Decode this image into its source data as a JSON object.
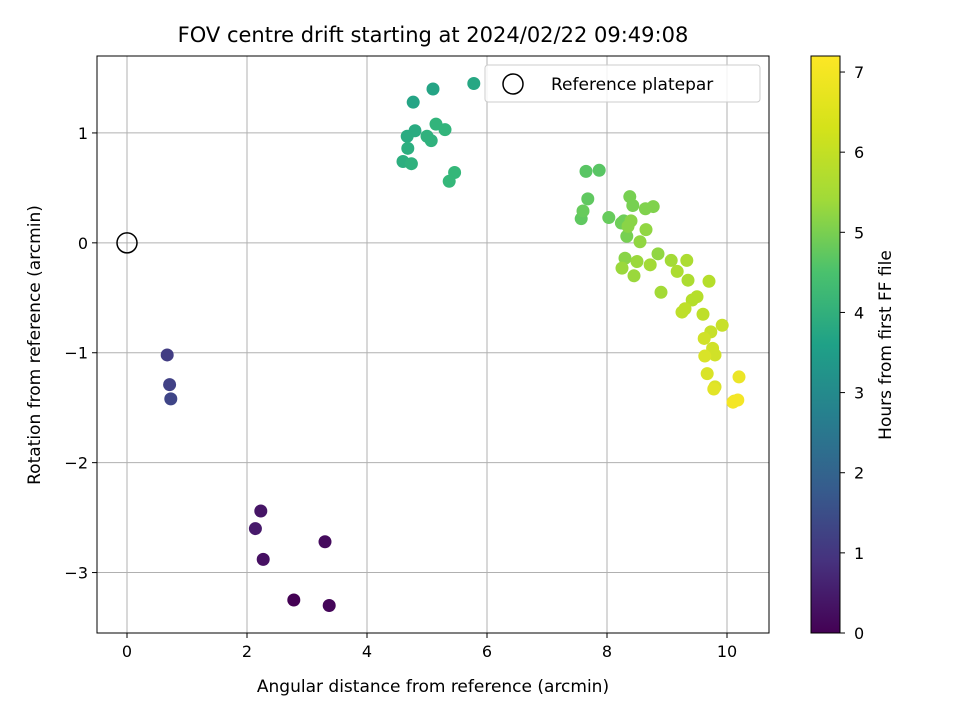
{
  "chart_data": {
    "type": "scatter",
    "title": "FOV centre drift starting at 2024/02/22 09:49:08",
    "xlabel": "Angular distance from reference (arcmin)",
    "ylabel": "Rotation from reference (arcmin)",
    "xlim": [
      -0.5,
      10.7
    ],
    "ylim": [
      -3.55,
      1.7
    ],
    "xticks": [
      0,
      2,
      4,
      6,
      8,
      10
    ],
    "yticks": [
      -3,
      -2,
      -1,
      0,
      1
    ],
    "grid": true,
    "legend": {
      "placement": "top-right",
      "entries": [
        "Reference platepar"
      ]
    },
    "reference_point": {
      "label": "Reference platepar",
      "x": 0,
      "y": 0
    },
    "colorbar": {
      "label": "Hours from first FF file",
      "range": [
        0,
        7.2
      ],
      "ticks": [
        0,
        1,
        2,
        3,
        4,
        5,
        6,
        7
      ],
      "colormap": "viridis"
    },
    "series": [
      {
        "x": [
          2.78,
          3.37,
          3.3,
          2.27,
          2.23,
          2.14,
          0.67,
          0.71,
          0.73,
          4.77,
          5.1,
          5.78,
          4.8,
          4.67,
          4.68,
          4.6,
          4.74,
          5.0,
          5.07,
          5.15,
          5.3,
          5.46,
          5.37,
          7.65,
          7.87,
          7.68,
          7.57,
          7.6,
          8.03,
          8.24,
          8.28,
          8.33,
          8.38,
          8.43,
          8.64,
          8.77,
          8.4,
          8.35,
          8.3,
          8.55,
          8.65,
          8.85,
          8.5,
          8.25,
          8.45,
          8.72,
          8.9,
          9.07,
          9.17,
          9.33,
          9.35,
          9.7,
          9.42,
          9.5,
          9.3,
          9.25,
          9.6,
          9.92,
          9.73,
          9.62,
          9.76,
          9.8,
          9.63,
          9.67,
          9.8,
          9.78,
          10.12,
          10.2,
          10.18,
          10.1
        ],
        "y": [
          -3.25,
          -3.3,
          -2.72,
          -2.88,
          -2.44,
          -2.6,
          -1.02,
          -1.29,
          -1.42,
          1.28,
          1.4,
          1.45,
          1.02,
          0.97,
          0.86,
          0.74,
          0.72,
          0.97,
          0.93,
          1.08,
          1.03,
          0.64,
          0.56,
          0.65,
          0.66,
          0.4,
          0.22,
          0.29,
          0.23,
          0.18,
          0.2,
          0.06,
          0.42,
          0.34,
          0.31,
          0.33,
          0.2,
          0.15,
          -0.14,
          0.01,
          0.12,
          -0.1,
          -0.17,
          -0.23,
          -0.3,
          -0.2,
          -0.45,
          -0.16,
          -0.26,
          -0.16,
          -0.34,
          -0.35,
          -0.52,
          -0.49,
          -0.6,
          -0.63,
          -0.65,
          -0.75,
          -0.81,
          -0.87,
          -0.96,
          -1.02,
          -1.03,
          -1.19,
          -1.31,
          -1.33,
          -1.44,
          -1.22,
          -1.43,
          -1.45
        ],
        "hours": [
          0.0,
          0.1,
          0.2,
          0.3,
          0.4,
          0.5,
          1.3,
          1.4,
          1.5,
          4.2,
          4.2,
          4.3,
          4.4,
          4.4,
          4.5,
          4.5,
          4.6,
          4.6,
          4.6,
          4.7,
          4.7,
          4.8,
          4.8,
          5.3,
          5.3,
          5.4,
          5.4,
          5.5,
          5.5,
          5.6,
          5.6,
          5.7,
          5.7,
          5.7,
          5.8,
          5.8,
          5.9,
          5.9,
          5.9,
          6.0,
          6.0,
          6.0,
          6.1,
          6.1,
          6.1,
          6.2,
          6.2,
          6.2,
          6.3,
          6.3,
          6.3,
          6.4,
          6.4,
          6.4,
          6.5,
          6.5,
          6.5,
          6.6,
          6.6,
          6.7,
          6.7,
          6.7,
          6.8,
          6.8,
          6.8,
          6.9,
          7.0,
          7.0,
          7.1,
          7.1
        ]
      }
    ]
  }
}
